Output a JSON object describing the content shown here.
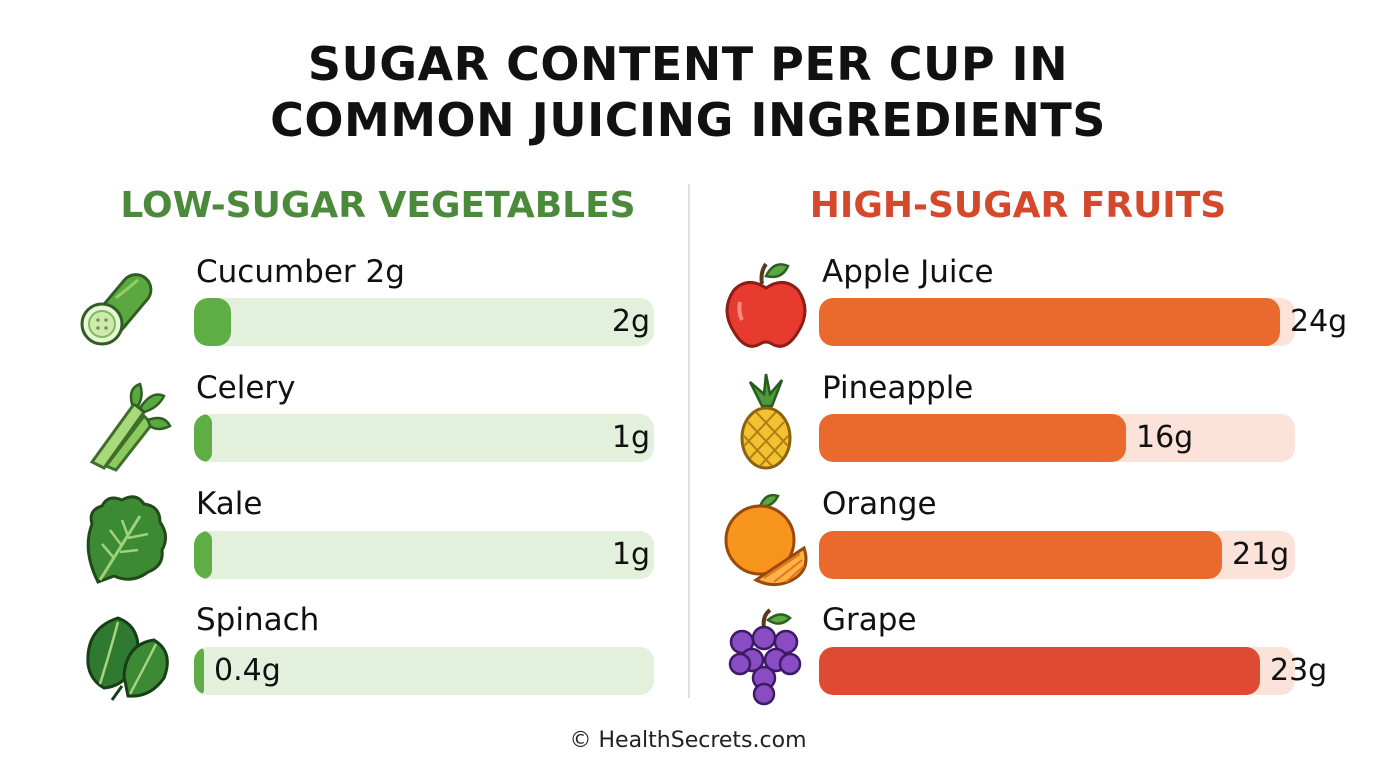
{
  "title_line1": "SUGAR CONTENT PER CUP IN",
  "title_line2": "COMMON JUICING INGREDIENTS",
  "footer": "© HealthSecrets.com",
  "colors": {
    "veg_fill": "#5fad45",
    "veg_track": "#e3f1dc",
    "fruit_fill": "#ea6a2e",
    "grape_fill": "#de4a32",
    "fruit_track": "#fbe3da"
  },
  "chart_data": [
    {
      "type": "bar",
      "title": "LOW-SUGAR VEGETABLES",
      "unit": "g",
      "xlim": [
        0,
        24
      ],
      "categories": [
        "Cucumber 2g",
        "Celery",
        "Kale",
        "Spinach"
      ],
      "values": [
        2,
        1,
        1,
        0.4
      ],
      "value_labels": [
        "2g",
        "1g",
        "1g",
        "0.4g"
      ],
      "icons": [
        "cucumber-icon",
        "celery-icon",
        "kale-icon",
        "spinach-icon"
      ]
    },
    {
      "type": "bar",
      "title": "HIGH-SUGAR FRUITS",
      "unit": "g",
      "xlim": [
        0,
        24
      ],
      "categories": [
        "Apple Juice",
        "Pineapple",
        "Orange",
        "Grape"
      ],
      "values": [
        24,
        16,
        21,
        23
      ],
      "value_labels": [
        "24g",
        "16g",
        "21g",
        "23g"
      ],
      "icons": [
        "apple-icon",
        "pineapple-icon",
        "orange-icon",
        "grape-icon"
      ]
    }
  ]
}
